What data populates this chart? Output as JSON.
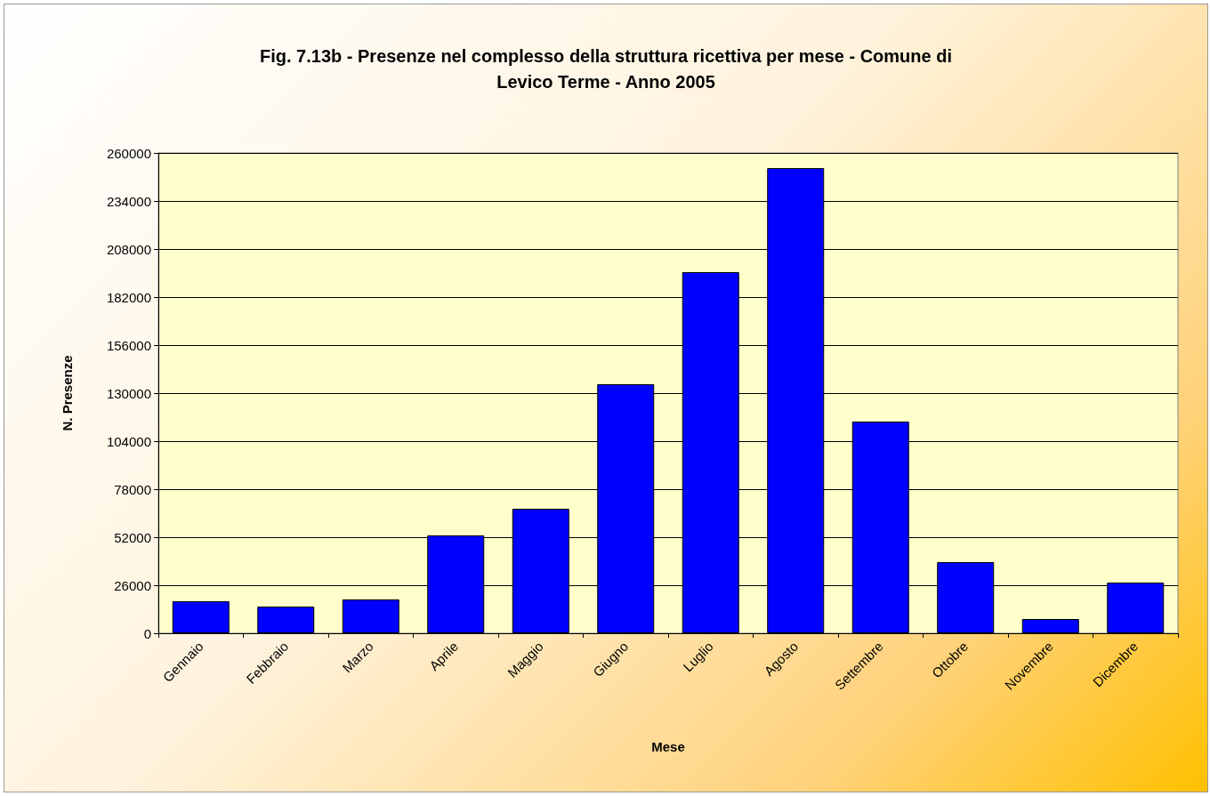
{
  "chart_data": {
    "type": "bar",
    "title": "Fig. 7.13b - Presenze nel complesso della struttura ricettiva per mese - Comune di\nLevico Terme - Anno 2005",
    "xlabel": "Mese",
    "ylabel": "N. Presenze",
    "categories": [
      "Gennaio",
      "Febbraio",
      "Marzo",
      "Aprile",
      "Maggio",
      "Giugno",
      "Luglio",
      "Agosto",
      "Settembre",
      "Ottobre",
      "Novembre",
      "Dicembre"
    ],
    "values": [
      17300,
      14400,
      18300,
      53000,
      67400,
      134800,
      195500,
      251800,
      114600,
      38500,
      7700,
      27400
    ],
    "color": "#0000ff",
    "ylim": [
      0,
      260000
    ],
    "yticks": [
      0,
      26000,
      52000,
      78000,
      104000,
      130000,
      156000,
      182000,
      208000,
      234000,
      260000
    ],
    "grid": "y"
  }
}
